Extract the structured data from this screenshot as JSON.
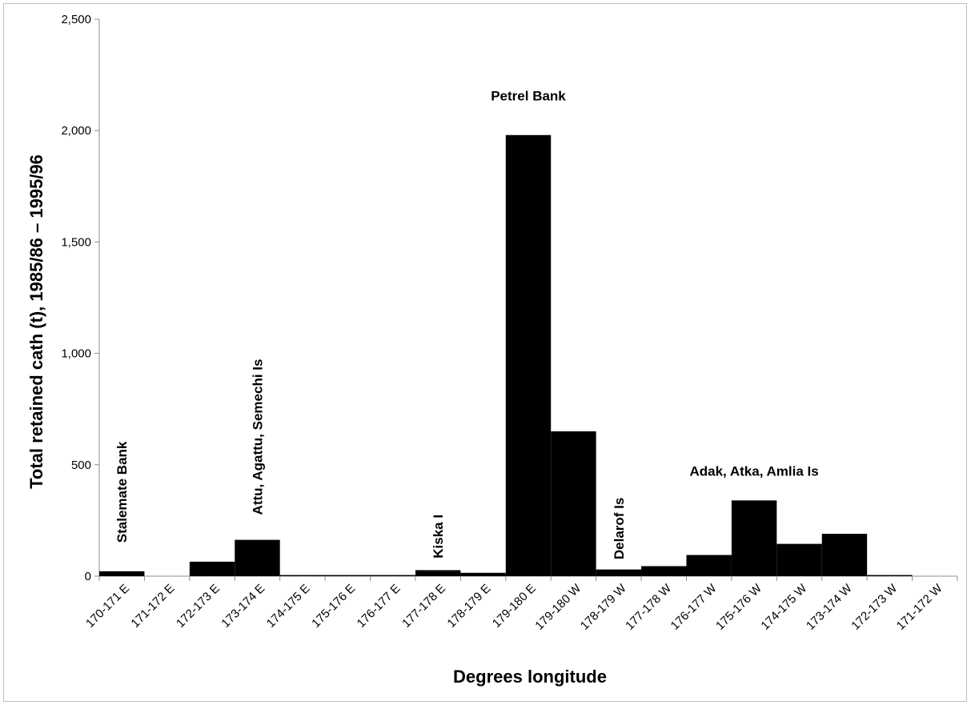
{
  "chart_data": {
    "type": "bar",
    "categories": [
      "170-171 E",
      "171-172 E",
      "172-173 E",
      "173-174 E",
      "174-175 E",
      "175-176 E",
      "176-177 E",
      "177-178 E",
      "178-179 E",
      "179-180 E",
      "179-180 W",
      "178-179 W",
      "177-178 W",
      "176-177 W",
      "175-176 W",
      "174-175 W",
      "173-174 W",
      "172-173 W",
      "171-172 W"
    ],
    "values": [
      22,
      0,
      65,
      163,
      5,
      5,
      5,
      27,
      15,
      1980,
      650,
      30,
      45,
      95,
      340,
      145,
      190,
      5,
      0
    ],
    "xlabel": "Degrees longitude",
    "ylabel": "Total retained cath (t), 1985/86 – 1995/96",
    "ylim": [
      0,
      2500
    ],
    "yticks": [
      "0",
      "500",
      "1,000",
      "1,500",
      "2,000",
      "2,500"
    ],
    "ytick_values": [
      0,
      500,
      1000,
      1500,
      2000,
      2500
    ],
    "bar_color": "#000000",
    "gridlines": false,
    "legend": "none",
    "annotations": [
      {
        "text": "Stalemate Bank",
        "category": "170-171 E",
        "y": 150,
        "rotation": "vertical"
      },
      {
        "text": "Attu, Agattu, Semechi Is",
        "category": "173-174 E",
        "y": 275,
        "rotation": "vertical"
      },
      {
        "text": "Kiska I",
        "category": "177-178 E",
        "y": 80,
        "rotation": "vertical"
      },
      {
        "text": "Petrel Bank",
        "category": "179-180 E",
        "y": 2135,
        "rotation": "horizontal"
      },
      {
        "text": "Delarof Is",
        "category": "178-179 W",
        "y": 75,
        "rotation": "vertical"
      },
      {
        "text": "Adak, Atka, Amlia Is",
        "category": "175-176 W",
        "y": 450,
        "rotation": "horizontal"
      }
    ]
  }
}
